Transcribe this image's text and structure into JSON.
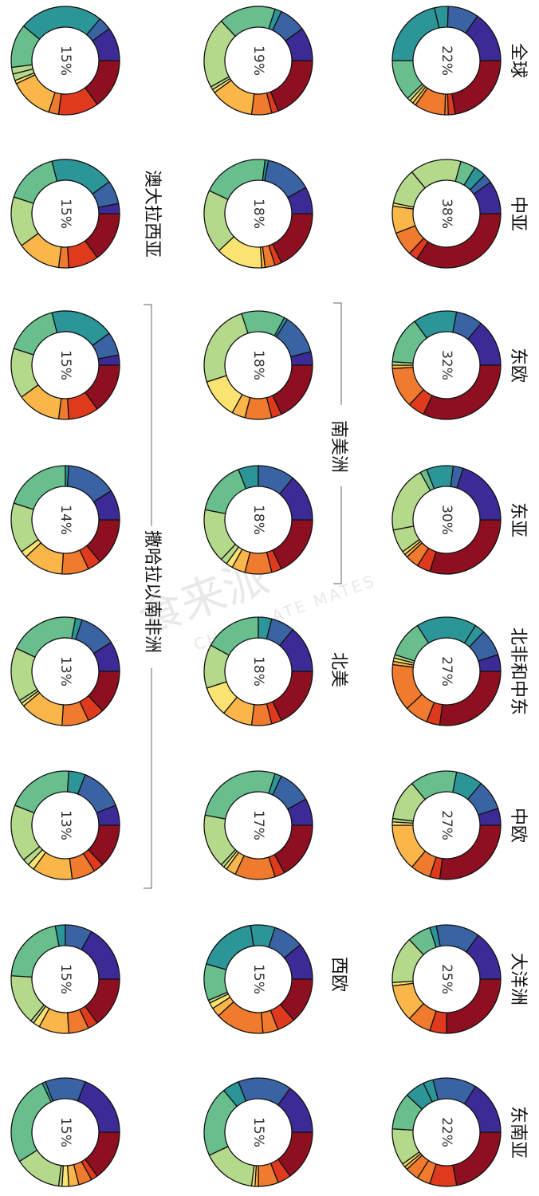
{
  "colors": [
    "#8e1020",
    "#e03a1e",
    "#f07a2e",
    "#fbb64a",
    "#fae371",
    "#b5d98b",
    "#68bf8d",
    "#2b9598",
    "#3a63a4",
    "#3c2b96"
  ],
  "watermark": {
    "cn": "食来派",
    "en": "CHOCOLATE MATES"
  },
  "chart_data": [
    {
      "type": "pie",
      "label": "全球",
      "center_label": "22%",
      "values": [
        22,
        2,
        1,
        9,
        1,
        1,
        1,
        12,
        21,
        4,
        9,
        15
      ]
    },
    {
      "type": "pie",
      "label": "中亚",
      "center_label": "38%",
      "values": [
        38,
        3,
        8,
        9,
        1,
        12,
        17,
        5,
        4,
        3,
        11
      ]
    },
    {
      "type": "pie",
      "label": "东欧",
      "center_label": "32%",
      "values": [
        32,
        5,
        12,
        1,
        1,
        14,
        13,
        8,
        14
      ]
    },
    {
      "type": "pie",
      "label": "东亚",
      "center_label": "30%",
      "values": [
        30,
        4,
        4,
        1,
        1,
        7,
        20,
        2,
        8,
        3,
        20
      ]
    },
    {
      "type": "pie",
      "label": "北非和中东",
      "center_label": "27%",
      "values": [
        27,
        4,
        7,
        14,
        1,
        1,
        1,
        11,
        18,
        3,
        8,
        5
      ]
    },
    {
      "type": "pie",
      "label": "中欧",
      "center_label": "27%",
      "values": [
        27,
        3,
        6,
        14,
        1,
        1,
        12,
        14,
        8,
        9,
        5
      ]
    },
    {
      "type": "pie",
      "label": "大洋洲",
      "center_label": "25%",
      "values": [
        25,
        5,
        7,
        11,
        1,
        14,
        7,
        2,
        13,
        15
      ]
    },
    {
      "type": "pie",
      "label": "东南亚",
      "center_label": "22%",
      "values": [
        22,
        8,
        4,
        4,
        1,
        1,
        11,
        11,
        6,
        3,
        13,
        16
      ]
    },
    {
      "type": "pie",
      "label": "南美洲",
      "center_label": "19%",
      "values": [
        19,
        2,
        6,
        13,
        1,
        1,
        21,
        17,
        2,
        8,
        10
      ]
    },
    {
      "type": "pie",
      "label": "南美洲",
      "center_label": "18%",
      "values": [
        18,
        2,
        3,
        1,
        14,
        19,
        20,
        1,
        14,
        8
      ]
    },
    {
      "type": "pie",
      "label": "南美洲",
      "center_label": "18%",
      "values": [
        18,
        3,
        8,
        4,
        12,
        25,
        13,
        1,
        12,
        4
      ]
    },
    {
      "type": "pie",
      "label": "南美洲",
      "center_label": "18%",
      "values": [
        18,
        3,
        8,
        4,
        2,
        2,
        16,
        16,
        6,
        11,
        14
      ]
    },
    {
      "type": "pie",
      "label": "北美",
      "center_label": "18%",
      "values": [
        18,
        3,
        6,
        9,
        9,
        13,
        17,
        4,
        7,
        14
      ]
    },
    {
      "type": "pie",
      "label": "",
      "center_label": "17%",
      "values": [
        17,
        3,
        12,
        3,
        1,
        1,
        16,
        27,
        2,
        10,
        8
      ]
    },
    {
      "type": "pie",
      "label": "西欧",
      "center_label": "15%",
      "values": [
        15,
        6,
        5,
        16,
        3,
        2,
        1,
        12,
        20,
        8,
        10,
        12
      ]
    },
    {
      "type": "pie",
      "label": "",
      "center_label": "15%",
      "values": [
        15,
        4,
        6,
        1,
        1,
        16,
        21,
        5,
        16,
        15
      ]
    },
    {
      "type": "pie",
      "label": "澳大拉西亚",
      "center_label": "15%",
      "values": [
        15,
        12,
        3,
        13,
        1,
        2,
        2,
        13,
        25,
        4,
        10
      ]
    },
    {
      "type": "pie",
      "label": "撒哈拉以南非洲",
      "center_label": "15%",
      "values": [
        15,
        9,
        3,
        13,
        15,
        16,
        19,
        7,
        3
      ]
    },
    {
      "type": "pie",
      "label": "撒哈拉以南非洲",
      "center_label": "15%",
      "values": [
        15,
        9,
        3,
        13,
        15,
        16,
        19,
        7,
        3
      ]
    },
    {
      "type": "pie",
      "label": "撒哈拉以南非洲",
      "center_label": "14%",
      "values": [
        14,
        4,
        8,
        12,
        2,
        15,
        20,
        1,
        15,
        9
      ]
    },
    {
      "type": "pie",
      "label": "撒哈拉以南非洲",
      "center_label": "13%",
      "values": [
        13,
        5,
        8,
        13,
        1,
        1,
        16,
        21,
        2,
        11,
        9
      ]
    },
    {
      "type": "pie",
      "label": "撒哈拉以南非洲",
      "center_label": "13%",
      "values": [
        13,
        3,
        7,
        12,
        2,
        2,
        17,
        20,
        5,
        13,
        6
      ]
    },
    {
      "type": "pie",
      "label": "",
      "center_label": "15%",
      "values": [
        15,
        3,
        6,
        9,
        2,
        1,
        15,
        21,
        3,
        8,
        17
      ]
    },
    {
      "type": "pie",
      "label": "",
      "center_label": "15%",
      "values": [
        15,
        2,
        4,
        3,
        2,
        1,
        14,
        27,
        1,
        12,
        19
      ]
    }
  ],
  "region_labels": {
    "r0": "全球",
    "r1": "中亚",
    "r2": "东欧",
    "r3": "东亚",
    "r4": "北非和中东",
    "r5": "中欧",
    "r6": "大洋洲",
    "r7": "东南亚",
    "r8": "南美洲",
    "r9": "北美",
    "r10": "西欧",
    "r11": "澳大拉西亚",
    "r12": "撒哈拉以南非洲"
  }
}
